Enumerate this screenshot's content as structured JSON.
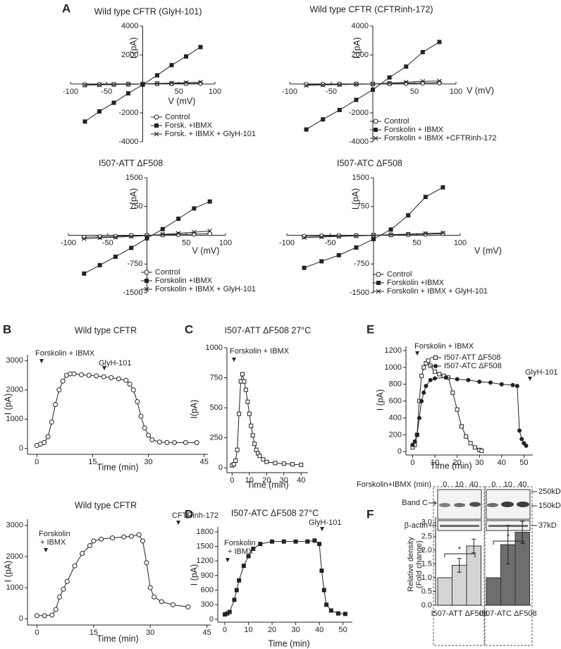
{
  "panel_labels": [
    "A",
    "B",
    "C",
    "D",
    "E",
    "F"
  ],
  "chart_data": [
    {
      "type": "line",
      "axis_position": "zero",
      "title": "Wild type CFTR (GlyH-101)",
      "xlabel": "V (mV)",
      "ylabel": "I (pA)",
      "x": [
        -80,
        -60,
        -40,
        -20,
        0,
        20,
        40,
        60,
        80
      ],
      "xlim": [
        -100,
        100
      ],
      "ylim": [
        -4000,
        4000
      ],
      "xticks": [
        -100,
        -50,
        50,
        100
      ],
      "yticks": [
        -4000,
        -2000,
        2000,
        4000
      ],
      "legend": true,
      "series": [
        {
          "name": "Control",
          "color": "#222222",
          "marker": "open-circle",
          "values": [
            -60,
            -40,
            -30,
            -20,
            0,
            10,
            20,
            30,
            40
          ]
        },
        {
          "name": "Forsk. +IBMX",
          "color": "#222222",
          "marker": "square",
          "values": [
            -2600,
            -1900,
            -1300,
            -650,
            -50,
            600,
            1300,
            1900,
            2550
          ]
        },
        {
          "name": "Forsk. + IBMX + GlyH-101",
          "color": "#222222",
          "marker": "x",
          "values": [
            -80,
            -60,
            -40,
            -20,
            0,
            30,
            60,
            90,
            120
          ]
        }
      ]
    },
    {
      "type": "line",
      "axis_position": "zero",
      "title": "Wild type CFTR (CFTRinh-172)",
      "xlabel": "V (mV)",
      "ylabel": "I (pA)",
      "x": [
        -80,
        -60,
        -40,
        -20,
        0,
        20,
        40,
        60,
        80
      ],
      "xlim": [
        -100,
        100
      ],
      "ylim": [
        -4000,
        4000
      ],
      "xticks": [
        -100,
        -50,
        50,
        100
      ],
      "yticks": [
        -4000,
        -2000,
        2000,
        4000
      ],
      "legend": true,
      "series": [
        {
          "name": "Control",
          "color": "#222222",
          "marker": "open-circle",
          "values": [
            -40,
            -30,
            -20,
            -10,
            0,
            20,
            40,
            60,
            80
          ]
        },
        {
          "name": "Forskolin + IBMX",
          "color": "#222222",
          "marker": "square",
          "values": [
            -3150,
            -2450,
            -1800,
            -1100,
            -400,
            450,
            1200,
            2200,
            2900
          ]
        },
        {
          "name": "Forskolin + IBMX +CFTRinh-172",
          "color": "#222222",
          "marker": "x",
          "values": [
            -100,
            -70,
            -50,
            -20,
            0,
            60,
            120,
            180,
            200
          ]
        }
      ]
    },
    {
      "type": "line",
      "axis_position": "zero",
      "title": "I507-ATT ΔF508",
      "xlabel": "V (mV)",
      "ylabel": "I (pA)",
      "x": [
        -80,
        -60,
        -40,
        -20,
        0,
        20,
        40,
        60,
        80
      ],
      "xlim": [
        -100,
        100
      ],
      "ylim": [
        -1500,
        1500
      ],
      "xticks": [
        -100,
        -50,
        50,
        100
      ],
      "yticks": [
        -1500,
        -750,
        750,
        1500
      ],
      "legend": true,
      "series": [
        {
          "name": "Control",
          "color": "#222222",
          "marker": "open-circle",
          "values": [
            -50,
            -40,
            -30,
            -10,
            0,
            10,
            20,
            30,
            40
          ]
        },
        {
          "name": "Forskolin +IBMX",
          "color": "#222222",
          "marker": "square",
          "values": [
            -1000,
            -780,
            -560,
            -330,
            -80,
            160,
            430,
            700,
            880
          ]
        },
        {
          "name": "Forskolin + IBMX + GlyH-101",
          "color": "#222222",
          "marker": "x",
          "values": [
            -90,
            -70,
            -50,
            -30,
            -10,
            20,
            50,
            80,
            110
          ]
        }
      ]
    },
    {
      "type": "line",
      "axis_position": "zero",
      "title": "I507-ATC ΔF508",
      "xlabel": "V (mV)",
      "ylabel": "I (pA)",
      "x": [
        -80,
        -60,
        -40,
        -20,
        0,
        20,
        40,
        60,
        80
      ],
      "xlim": [
        -100,
        100
      ],
      "ylim": [
        -1500,
        1500
      ],
      "xticks": [
        -100,
        -50,
        50,
        100
      ],
      "yticks": [
        -1500,
        -750,
        750,
        1500
      ],
      "legend": true,
      "series": [
        {
          "name": "Control",
          "color": "#222222",
          "marker": "open-circle",
          "values": [
            -30,
            -20,
            -15,
            -10,
            0,
            10,
            20,
            30,
            40
          ]
        },
        {
          "name": "Forskolin +IBMX",
          "color": "#222222",
          "marker": "square",
          "values": [
            -850,
            -680,
            -520,
            -320,
            -100,
            150,
            520,
            1000,
            1250
          ]
        },
        {
          "name": "Forskolin + IBMX + GlyH-101",
          "color": "#222222",
          "marker": "x",
          "values": [
            -60,
            -45,
            -30,
            -15,
            0,
            15,
            30,
            45,
            60
          ]
        }
      ]
    },
    {
      "type": "line",
      "title": "Wild type CFTR",
      "xlabel": "Time (min)",
      "ylabel": "I (pA)",
      "annotations": [
        "Forskolin + IBMX",
        "GlyH-101"
      ],
      "x": [
        0,
        1,
        2,
        3,
        4,
        5,
        6,
        7,
        8,
        9,
        10,
        12,
        14,
        16,
        18,
        20,
        22,
        24,
        25,
        26,
        27,
        28,
        29,
        30,
        31,
        33,
        35,
        37,
        40,
        43
      ],
      "xlim": [
        -2.5,
        46
      ],
      "ylim": [
        -200,
        3200
      ],
      "xticks": [
        0,
        15,
        30,
        45
      ],
      "yticks": [
        0,
        1000,
        2000,
        3000
      ],
      "series": [
        {
          "color": "#222222",
          "marker": "open-circle",
          "values": [
            100,
            150,
            200,
            400,
            900,
            1500,
            2000,
            2300,
            2500,
            2550,
            2550,
            2520,
            2500,
            2480,
            2450,
            2420,
            2380,
            2330,
            2200,
            2000,
            1600,
            1100,
            700,
            450,
            300,
            220,
            200,
            200,
            200,
            200
          ]
        }
      ]
    },
    {
      "type": "line",
      "title": "Wild type CFTR",
      "xlabel": "Time (min)",
      "ylabel": "I (pA)",
      "annotations": [
        "Forskolin",
        "+ IBMX",
        "CFTRinh-172"
      ],
      "x": [
        0,
        2,
        4,
        5,
        6,
        7,
        8,
        10,
        12,
        14,
        15,
        17,
        20,
        23,
        25,
        27,
        28,
        29,
        30,
        31,
        33,
        36,
        40
      ],
      "xlim": [
        -2.5,
        46
      ],
      "ylim": [
        -200,
        3200
      ],
      "xticks": [
        0,
        15,
        30,
        45
      ],
      "yticks": [
        0,
        1000,
        2000,
        3000
      ],
      "series": [
        {
          "color": "#222222",
          "marker": "open-circle",
          "values": [
            100,
            100,
            120,
            300,
            700,
            950,
            1200,
            1700,
            2100,
            2350,
            2500,
            2560,
            2600,
            2630,
            2650,
            2700,
            2500,
            1800,
            1000,
            700,
            550,
            450,
            380
          ]
        }
      ]
    },
    {
      "type": "line",
      "title": "I507-ATT ΔF508 27°C",
      "xlabel": "Time (min)",
      "ylabel": "I(pA)",
      "annotations": [
        "Forskolin + IBMX"
      ],
      "x": [
        0,
        1,
        2,
        3,
        4,
        5,
        6,
        7,
        8,
        9,
        10,
        11,
        12,
        13,
        14,
        15,
        16,
        18,
        20,
        25,
        30,
        35,
        40
      ],
      "xlim": [
        -3,
        44
      ],
      "ylim": [
        -40,
        1000
      ],
      "xticks": [
        0,
        10,
        20,
        30,
        40
      ],
      "yticks": [
        0,
        250,
        500,
        750,
        1000
      ],
      "series": [
        {
          "color": "#222222",
          "marker": "open-square",
          "values": [
            20,
            30,
            60,
            150,
            450,
            720,
            780,
            720,
            650,
            550,
            450,
            350,
            270,
            200,
            150,
            120,
            100,
            70,
            50,
            40,
            35,
            30,
            25
          ]
        }
      ]
    },
    {
      "type": "line",
      "title": "I507-ATC ΔF508 27°C",
      "xlabel": "Time (min)",
      "ylabel": "I (pA)",
      "annotations": [
        "Forskolin",
        "+ IBMX",
        "GlyH-101"
      ],
      "x": [
        0,
        1,
        2,
        4,
        5,
        6,
        8,
        10,
        12,
        15,
        20,
        25,
        30,
        35,
        38,
        40,
        41,
        42,
        43,
        45,
        48,
        51
      ],
      "xlim": [
        -3,
        54
      ],
      "ylim": [
        -60,
        1900
      ],
      "xticks": [
        0,
        10,
        20,
        30,
        40,
        50
      ],
      "yticks": [
        0,
        300,
        600,
        900,
        1200,
        1500,
        1800
      ],
      "series": [
        {
          "color": "#222222",
          "marker": "square",
          "values": [
            100,
            120,
            150,
            400,
            600,
            800,
            1100,
            1300,
            1450,
            1550,
            1600,
            1600,
            1600,
            1600,
            1620,
            1550,
            1000,
            600,
            300,
            180,
            120,
            110
          ]
        }
      ]
    },
    {
      "type": "line",
      "xlabel": "Time (min)",
      "ylabel": "I (pA)",
      "annotations": [
        "Forskolin + IBMX",
        "GlyH-101"
      ],
      "xlim": [
        -3,
        54
      ],
      "ylim": [
        -40,
        1250
      ],
      "xticks": [
        0,
        10,
        20,
        30,
        40,
        50
      ],
      "yticks": [
        0,
        200,
        400,
        600,
        800,
        1000,
        1200
      ],
      "legend": true,
      "series": [
        {
          "name": "I507-ATT ΔF508",
          "color": "#222222",
          "marker": "open-square",
          "x": [
            0,
            1,
            2,
            3,
            4,
            5,
            6,
            7,
            8,
            10,
            12,
            14,
            16,
            18,
            20,
            22,
            24,
            26,
            28,
            30,
            31
          ],
          "values": [
            50,
            80,
            200,
            600,
            900,
            1000,
            1050,
            1080,
            1020,
            950,
            920,
            900,
            880,
            700,
            500,
            300,
            180,
            100,
            50,
            20,
            10
          ]
        },
        {
          "name": "I507-ATC ΔF508",
          "color": "#222222",
          "marker": "circle",
          "x": [
            0,
            1,
            2,
            3,
            4,
            5,
            6,
            8,
            10,
            15,
            20,
            25,
            30,
            35,
            40,
            45,
            47,
            48,
            49,
            50,
            51
          ],
          "values": [
            80,
            120,
            200,
            400,
            600,
            700,
            780,
            850,
            870,
            880,
            860,
            850,
            830,
            820,
            800,
            790,
            780,
            250,
            150,
            100,
            70
          ]
        }
      ]
    },
    {
      "type": "bar",
      "xlabel": "Forskolin+IBMX (min)",
      "ylabel": [
        "Relative density",
        "(Fold change)"
      ],
      "categories": [
        "0",
        "10",
        "40"
      ],
      "blot_labels": [
        "Band C",
        "β-actin"
      ],
      "size_markers": [
        "250kD",
        "150kD",
        "37kD"
      ],
      "significance": [
        "*",
        "*"
      ],
      "ylim": [
        0,
        3.2
      ],
      "yticks": [
        {
          "value": 0,
          "label": "0.0"
        },
        {
          "value": 0.5,
          "label": "0.5"
        },
        {
          "value": 1,
          "label": "1.0"
        },
        {
          "value": 1.5,
          "label": "1.5"
        },
        {
          "value": 2,
          "label": "2.0"
        },
        {
          "value": 2.5,
          "label": "2.5"
        },
        {
          "value": 3,
          "label": "3.0"
        }
      ],
      "series": [
        {
          "name": "I507-ATT ΔF508",
          "color": "#d4d4d4",
          "values": [
            1.0,
            1.45,
            2.15
          ],
          "errors": [
            0,
            0.25,
            0.25
          ]
        },
        {
          "name": "I507-ATC ΔF508",
          "color": "#6e6e6e",
          "values": [
            1.0,
            2.2,
            2.65
          ],
          "errors": [
            0,
            0.7,
            0.4
          ]
        }
      ]
    }
  ]
}
